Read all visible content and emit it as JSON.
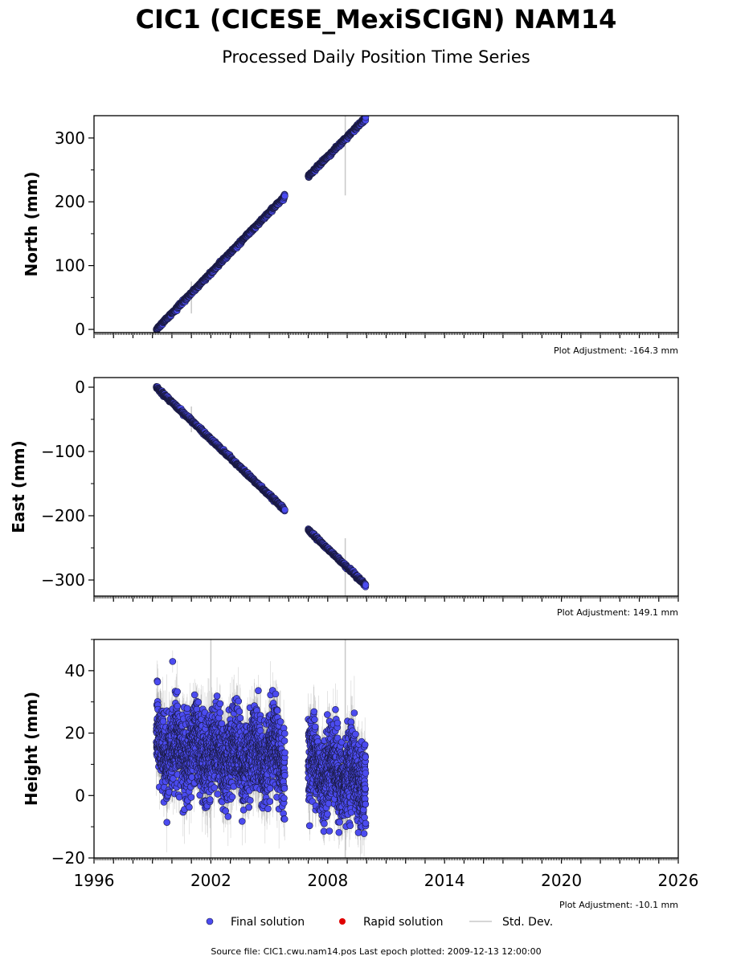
{
  "title": "CIC1 (CICESE_MexiSCIGN) NAM14",
  "subtitle": "Processed Daily Position Time Series",
  "colors": {
    "final": "#4b4bf0",
    "final_edge": "#1a1a40",
    "rapid": "#e00000",
    "stddev": "#c8c8c8"
  },
  "legend": [
    {
      "label": "Final solution",
      "icon": "blue-dot"
    },
    {
      "label": "Rapid solution",
      "icon": "red-dot"
    },
    {
      "label": "Std. Dev.",
      "icon": "gray-line"
    }
  ],
  "source_text": "Source file: CIC1.cwu.nam14.pos  Last epoch plotted: 2009-12-13 12:00:00",
  "chart_data": [
    {
      "type": "scatter",
      "ylabel": "North (mm)",
      "adjustment": "Plot Adjustment: -164.3 mm",
      "xlim": [
        1996,
        2026
      ],
      "ylim": [
        -5,
        335
      ],
      "yticks": [
        0,
        100,
        200,
        300
      ],
      "segments": [
        {
          "x": [
            1999.2,
            2005.8
          ],
          "y": [
            0,
            209
          ]
        },
        {
          "x": [
            2007.0,
            2009.95
          ],
          "y": [
            240,
            331
          ]
        }
      ],
      "y_scatter": 2
    },
    {
      "type": "scatter",
      "ylabel": "East (mm)",
      "adjustment": "Plot Adjustment: 149.1 mm",
      "xlim": [
        1996,
        2026
      ],
      "ylim": [
        -325,
        15
      ],
      "yticks": [
        0,
        -100,
        -200,
        -300
      ],
      "segments": [
        {
          "x": [
            1999.2,
            2005.8
          ],
          "y": [
            0,
            -191
          ]
        },
        {
          "x": [
            2007.0,
            2009.95
          ],
          "y": [
            -222,
            -308
          ]
        }
      ],
      "y_scatter": 2
    },
    {
      "type": "scatter",
      "ylabel": "Height (mm)",
      "adjustment": "Plot Adjustment: -10.1 mm",
      "xlim": [
        1996,
        2026
      ],
      "ylim": [
        -20,
        50
      ],
      "yticks": [
        -20,
        0,
        20,
        40
      ],
      "xticks": [
        1996,
        2002,
        2008,
        2014,
        2020,
        2026
      ],
      "segments": [
        {
          "x": [
            1999.2,
            2005.8
          ],
          "y": [
            15,
            12
          ]
        },
        {
          "x": [
            2007.0,
            2009.95
          ],
          "y": [
            10,
            5
          ]
        }
      ],
      "y_scatter": 8
    }
  ]
}
